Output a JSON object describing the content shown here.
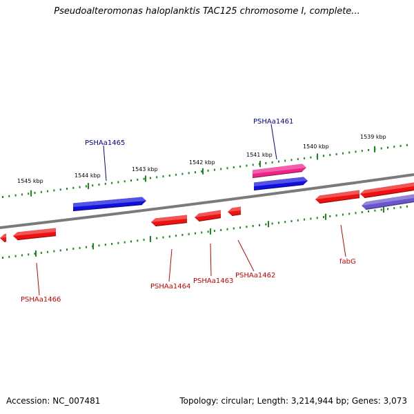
{
  "title": "Pseudoalteromonas haloplanktis TAC125 chromosome I, complete...",
  "accession": "Accession: NC_007481",
  "topology": "Topology: circular; Length: 3,214,944 bp; Genes: 3,073",
  "colors": {
    "backbone": "#7a7a7a",
    "tick": "#1a8a1a",
    "gene_red": "#ee1111",
    "gene_blue": "#1010dd",
    "gene_pink": "#ee2288",
    "gene_purple": "#6a55cc",
    "label_red": "#cc0000",
    "label_blue": "#000099"
  },
  "scale_labels": [
    "1545 kbp",
    "1544 kbp",
    "1543 kbp",
    "1542 kbp",
    "1541 kbp",
    "1540 kbp",
    "1539 kbp"
  ],
  "gene_labels": {
    "PSHAa1465": "PSHAa1465",
    "PSHAa1461": "PSHAa1461",
    "PSHAa1466": "PSHAa1466",
    "PSHAa1464": "PSHAa1464",
    "PSHAa1463": "PSHAa1463",
    "PSHAa1462": "PSHAa1462",
    "fabG": "fabG"
  }
}
